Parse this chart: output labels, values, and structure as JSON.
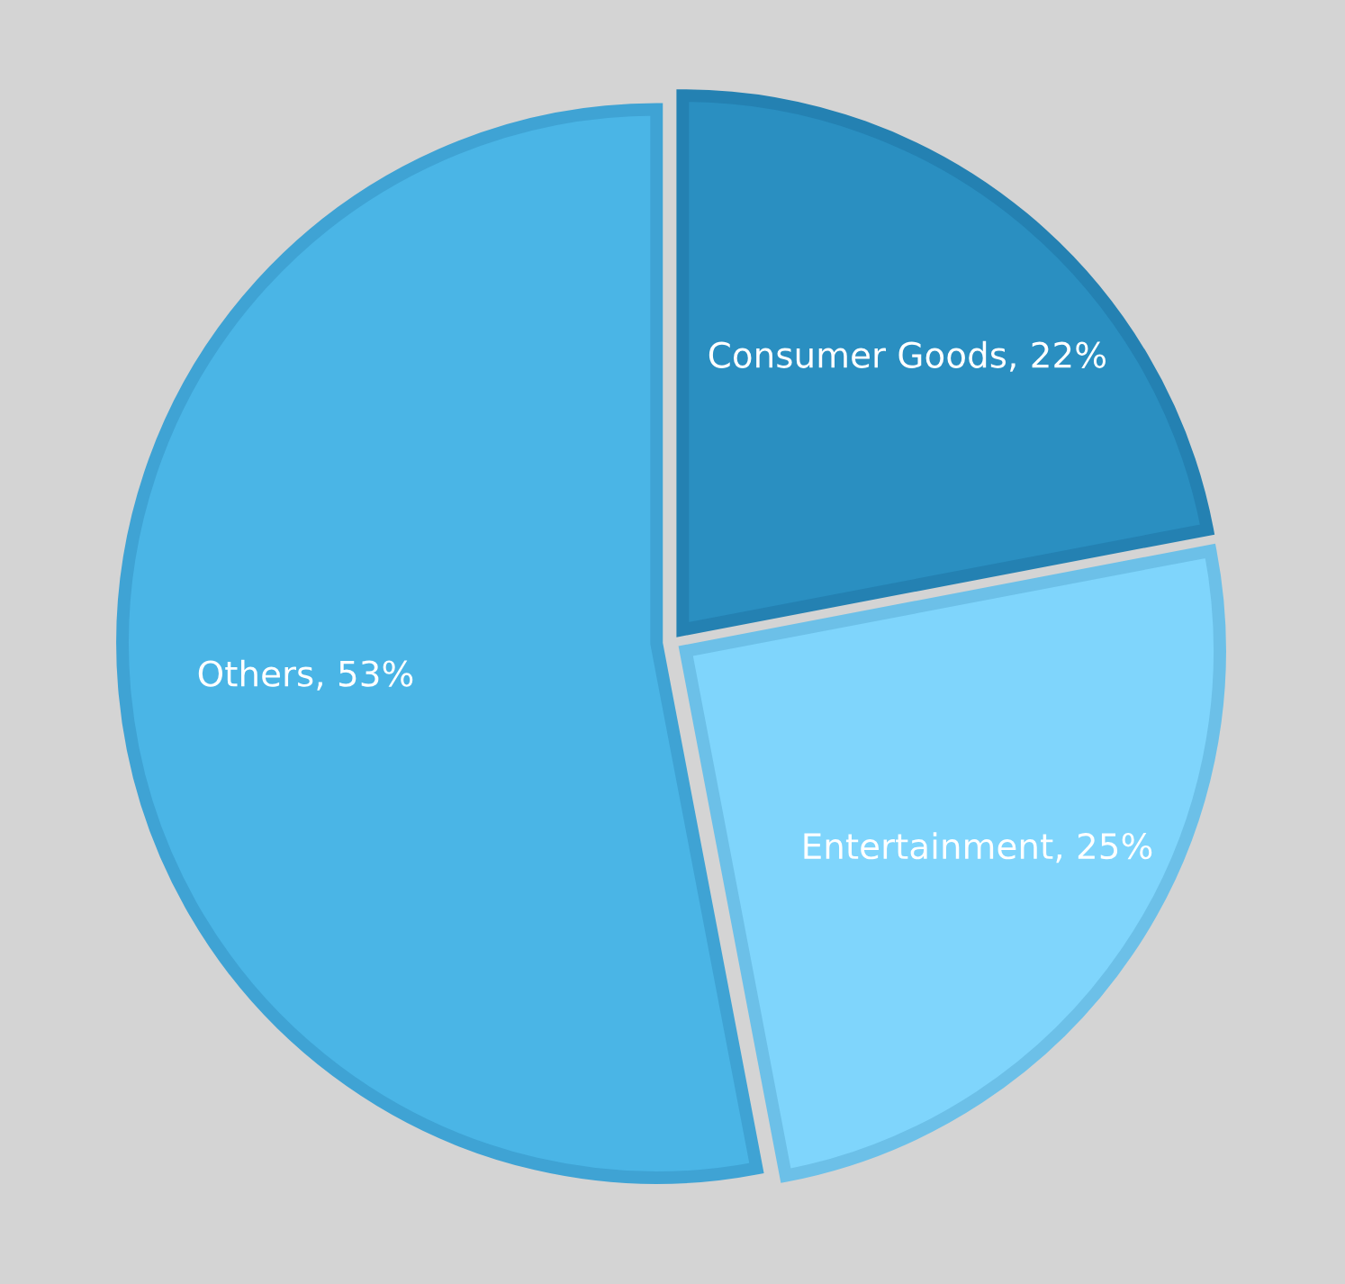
{
  "chart_data": {
    "type": "pie",
    "categories": [
      "Consumer Goods",
      "Entertainment",
      "Others"
    ],
    "values": [
      22,
      25,
      53
    ],
    "value_labels": [
      "22%",
      "25%",
      "53%"
    ],
    "colors": [
      "#2a8fc1",
      "#7fd5fc",
      "#4ab5e6"
    ]
  }
}
